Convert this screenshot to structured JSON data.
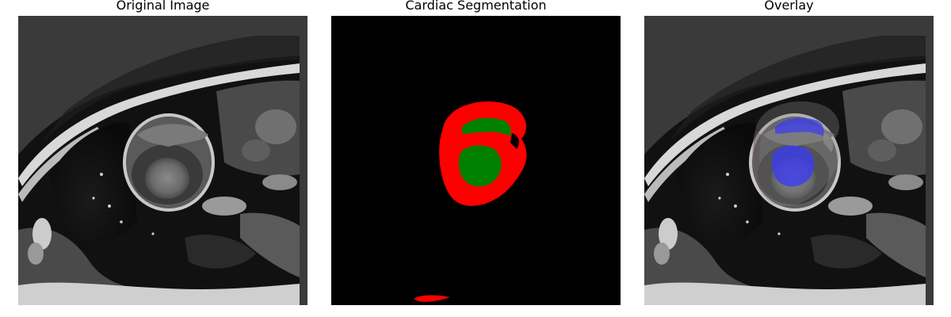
{
  "panels": [
    {
      "title": "Original Image"
    },
    {
      "title": "Cardiac Segmentation"
    },
    {
      "title": "Overlay"
    }
  ],
  "colors": {
    "background": "#ffffff",
    "mri_background": "#3a3a3a",
    "segmentation_background": "#000000",
    "label_red": "#ff0000",
    "label_green": "#008000",
    "overlay_blue": "#3c3cf0",
    "overlay_gray": "#808080"
  }
}
